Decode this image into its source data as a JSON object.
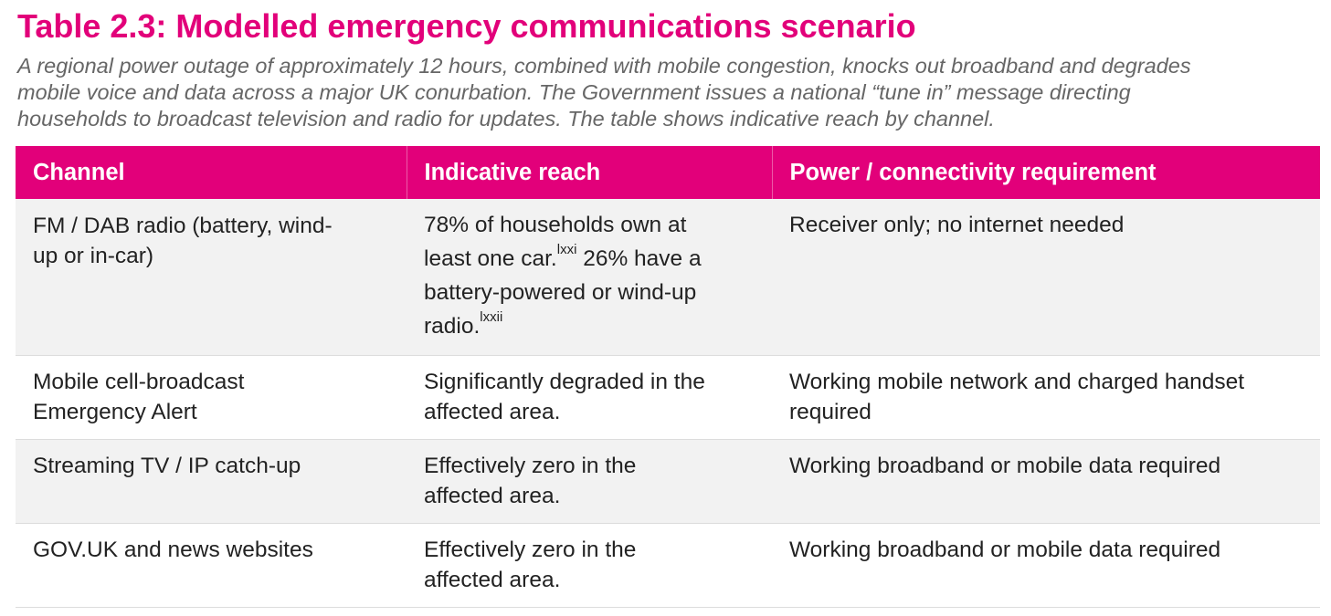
{
  "title": "Table 2.3: Modelled emergency communications scenario",
  "intro_lines": [
    "A regional power outage of approximately 12 hours, combined with mobile congestion, knocks out broadband and degrades",
    "mobile voice and data across a major UK conurbation. The Government issues a national “tune in” message directing",
    "households to broadcast television and radio for updates. The table shows indicative reach by channel."
  ],
  "colors": {
    "accent": "#e2007a",
    "intro_text": "#666666",
    "row_shade": "#f2f2f2",
    "row_plain": "#ffffff",
    "row_border": "#dcdcdc"
  },
  "table": {
    "headers": [
      "Channel",
      "Indicative reach",
      "Power / connectivity requirement"
    ],
    "rows": [
      {
        "channel": [
          "FM / DAB radio (battery, wind-",
          "up or in-car)"
        ],
        "reach": {
          "line1": "78% of households own at",
          "line2_pre": "least one car.",
          "line2_ref": "lxxi",
          "line2_post": " 26% have a",
          "line3": "battery-powered or wind-up",
          "line4_pre": "radio.",
          "line4_ref": "lxxii"
        },
        "requirement": [
          "Receiver only; no internet needed"
        ]
      },
      {
        "channel": [
          "Mobile cell-broadcast",
          "Emergency Alert"
        ],
        "reach": [
          "Significantly degraded in the",
          "affected area."
        ],
        "requirement": [
          "Working mobile network and charged handset",
          "required"
        ]
      },
      {
        "channel": [
          "Streaming TV / IP catch-up"
        ],
        "reach": [
          "Effectively zero in the",
          "affected area."
        ],
        "requirement": [
          "Working broadband or mobile data required"
        ]
      },
      {
        "channel": [
          "GOV.UK and news websites"
        ],
        "reach": [
          "Effectively zero in the",
          "affected area."
        ],
        "requirement": [
          "Working broadband or mobile data required"
        ]
      }
    ]
  }
}
